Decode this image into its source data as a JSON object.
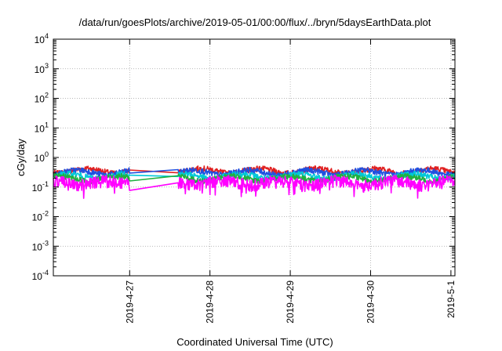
{
  "chart_data": {
    "type": "line",
    "title": "/data/run/goesPlots/archive/2019-05-01/00:00/flux/../bryn/5daysEarthData.plot",
    "xlabel": "Coordinated Universal Time (UTC)",
    "ylabel": "cGy/day",
    "yscale": "log",
    "ylim": [
      0.0001,
      10000
    ],
    "y_tick_exponents": [
      "-4",
      "-3",
      "-2",
      "-1",
      "0",
      "1",
      "2",
      "3",
      "4"
    ],
    "y_tick_base": "10",
    "xlim_days": [
      -0.95,
      4.05
    ],
    "x_ticks": [
      {
        "day": 0,
        "label": "2019-4-27"
      },
      {
        "day": 1,
        "label": "2019-4-28"
      },
      {
        "day": 2,
        "label": "2019-4-29"
      },
      {
        "day": 3,
        "label": "2019-4-30"
      },
      {
        "day": 4,
        "label": "2019-5-1"
      }
    ],
    "grid": true,
    "gaps": [
      [
        0.0,
        0.6
      ]
    ],
    "series": [
      {
        "color": "#e02020",
        "level": 0.36
      },
      {
        "color": "#2050e0",
        "level": 0.32
      },
      {
        "color": "#00c8d8",
        "level": 0.24
      },
      {
        "color": "#20b040",
        "level": 0.2
      },
      {
        "color": "#ff00ff",
        "level": 0.15
      }
    ]
  }
}
